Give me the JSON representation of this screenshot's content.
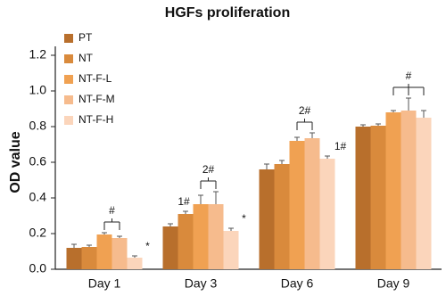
{
  "chart_data": {
    "type": "bar",
    "title": "HGFs proliferation",
    "y_label": "OD value",
    "categories": [
      "Day 1",
      "Day 3",
      "Day 6",
      "Day 9"
    ],
    "series": [
      {
        "name": "PT",
        "color": "#b86f2c",
        "values": [
          0.12,
          0.24,
          0.56,
          0.8
        ],
        "errors": [
          0.02,
          0.015,
          0.03,
          0.01
        ]
      },
      {
        "name": "NT",
        "color": "#d98a3c",
        "values": [
          0.125,
          0.31,
          0.59,
          0.805
        ],
        "errors": [
          0.01,
          0.015,
          0.02,
          0.01
        ]
      },
      {
        "name": "NT-F-L",
        "color": "#f0a152",
        "values": [
          0.195,
          0.365,
          0.72,
          0.88
        ],
        "errors": [
          0.01,
          0.05,
          0.02,
          0.01
        ]
      },
      {
        "name": "NT-F-M",
        "color": "#f6bb8d",
        "values": [
          0.175,
          0.365,
          0.735,
          0.89
        ],
        "errors": [
          0.01,
          0.07,
          0.03,
          0.07
        ]
      },
      {
        "name": "NT-F-H",
        "color": "#fbd5bb",
        "values": [
          0.065,
          0.215,
          0.62,
          0.85
        ],
        "errors": [
          0.01,
          0.015,
          0.015,
          0.04
        ]
      }
    ],
    "ylim": [
      0,
      1.2
    ],
    "yticks": [
      {
        "value": 0,
        "label": "0.0"
      },
      0.2,
      0.4,
      0.6,
      0.8,
      {
        "value": 1,
        "label": "1.0"
      },
      1.2
    ],
    "legend": "top-left",
    "annotations": [
      {
        "text": "#"
      },
      {
        "text": "*"
      },
      {
        "text": "1#"
      },
      {
        "text": "2#"
      },
      {
        "text": "*"
      },
      {
        "text": "2#"
      },
      {
        "text": "1#"
      },
      {
        "text": "#"
      }
    ]
  }
}
